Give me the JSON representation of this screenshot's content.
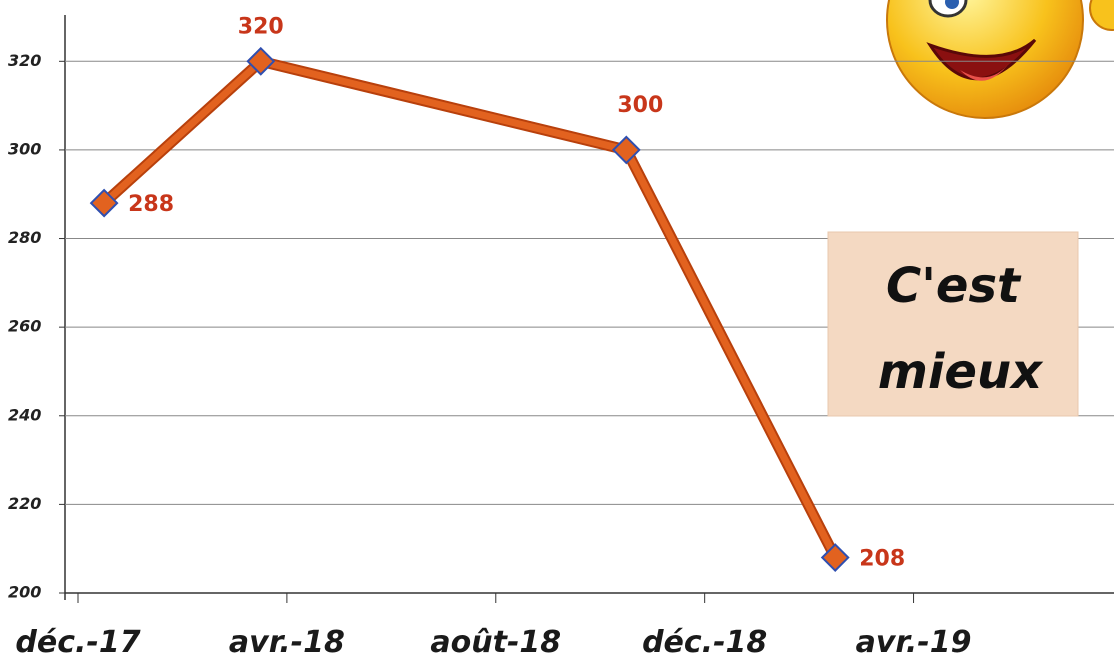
{
  "chart_data": {
    "type": "line",
    "x": [
      "2017-12",
      "2018-03",
      "2018-10",
      "2019-02"
    ],
    "series": [
      {
        "name": "",
        "color": "#e2621f",
        "values": [
          288,
          320,
          300,
          208
        ]
      }
    ],
    "xlim": [
      "2017-12",
      "2019-06"
    ],
    "xticks": [
      {
        "value": "2017-12",
        "label": "déc.-17"
      },
      {
        "value": "2018-04",
        "label": "avr.-18"
      },
      {
        "value": "2018-08",
        "label": "août-18"
      },
      {
        "value": "2018-12",
        "label": "déc.-18"
      },
      {
        "value": "2019-04",
        "label": "avr.-19"
      }
    ],
    "ylim": [
      200,
      330
    ],
    "yticks": [
      200,
      220,
      240,
      260,
      280,
      300,
      320
    ],
    "grid": true,
    "annotation": [
      "C'est",
      "mieux"
    ]
  }
}
